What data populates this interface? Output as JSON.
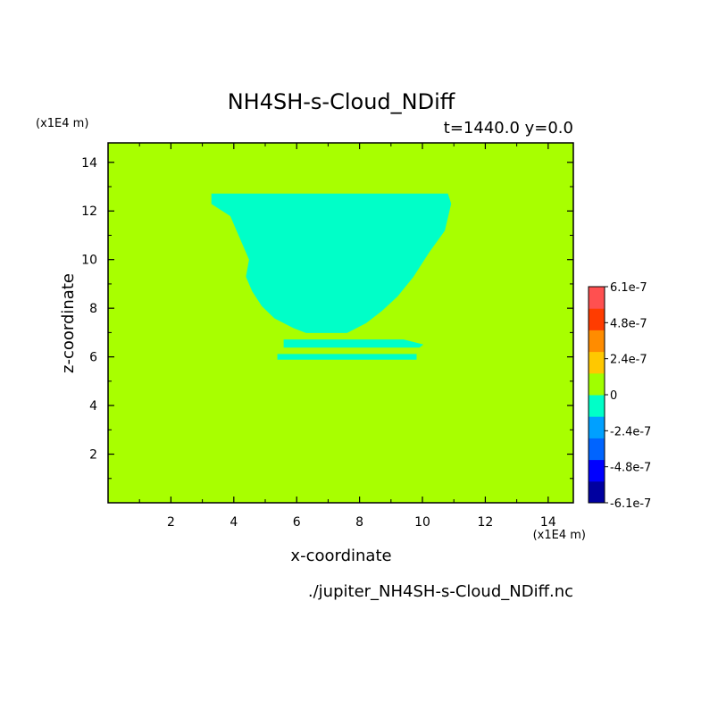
{
  "chart_data": {
    "type": "heatmap",
    "title": "NH4SH-s-Cloud_NDiff",
    "subtitle": "t=1440.0 y=0.0",
    "xlabel": "x-coordinate",
    "ylabel": "z-coordinate",
    "x_unit": "(x1E4 m)",
    "y_unit": "(x1E4 m)",
    "file_label": "./jupiter_NH4SH-s-Cloud_NDiff.nc",
    "xlim": [
      0,
      14.8
    ],
    "ylim": [
      0,
      14.8
    ],
    "x_ticks": [
      2,
      4,
      6,
      8,
      10,
      12,
      14
    ],
    "y_ticks": [
      2,
      4,
      6,
      8,
      10,
      12,
      14
    ],
    "x_tick_labels": [
      "2",
      "4",
      "6",
      "8",
      "10",
      "12",
      "14"
    ],
    "y_tick_labels": [
      "2",
      "4",
      "6",
      "8",
      "10",
      "12",
      "14"
    ],
    "background_level": "0",
    "regions": [
      {
        "name": "cloud-core",
        "level": "-1.2e-7",
        "outline": [
          [
            3.3,
            12.7
          ],
          [
            10.8,
            12.7
          ],
          [
            10.9,
            12.3
          ],
          [
            10.7,
            11.2
          ],
          [
            10.2,
            10.3
          ],
          [
            9.7,
            9.3
          ],
          [
            9.2,
            8.5
          ],
          [
            8.7,
            7.9
          ],
          [
            8.2,
            7.4
          ],
          [
            7.6,
            7.0
          ],
          [
            6.3,
            7.0
          ],
          [
            5.9,
            7.2
          ],
          [
            5.3,
            7.6
          ],
          [
            4.9,
            8.1
          ],
          [
            4.6,
            8.7
          ],
          [
            4.4,
            9.3
          ],
          [
            4.5,
            10.0
          ],
          [
            4.3,
            10.6
          ],
          [
            4.1,
            11.2
          ],
          [
            3.9,
            11.8
          ],
          [
            3.3,
            12.3
          ]
        ]
      },
      {
        "name": "lower-band-1",
        "level": "-1.2e-7",
        "outline": [
          [
            5.6,
            6.7
          ],
          [
            9.4,
            6.7
          ],
          [
            10.0,
            6.5
          ],
          [
            9.9,
            6.4
          ],
          [
            5.6,
            6.4
          ]
        ]
      },
      {
        "name": "lower-band-2",
        "level": "-1.2e-7",
        "outline": [
          [
            5.4,
            6.1
          ],
          [
            9.8,
            6.1
          ],
          [
            9.8,
            5.9
          ],
          [
            5.4,
            5.9
          ]
        ]
      }
    ],
    "colorbar": {
      "tick_labels": [
        "6.1e-7",
        "4.8e-7",
        "2.4e-7",
        "0",
        "-2.4e-7",
        "-4.8e-7",
        "-6.1e-7"
      ],
      "colors": [
        "#0000a0",
        "#0000ff",
        "#0064ff",
        "#00a0ff",
        "#00ffc8",
        "#a0ff00",
        "#ffc800",
        "#ff8c00",
        "#ff3c00",
        "#ff5050"
      ]
    },
    "colors": {
      "background": "#a8ff00",
      "cloud": "#00ffc8",
      "frame": "#000000"
    }
  }
}
